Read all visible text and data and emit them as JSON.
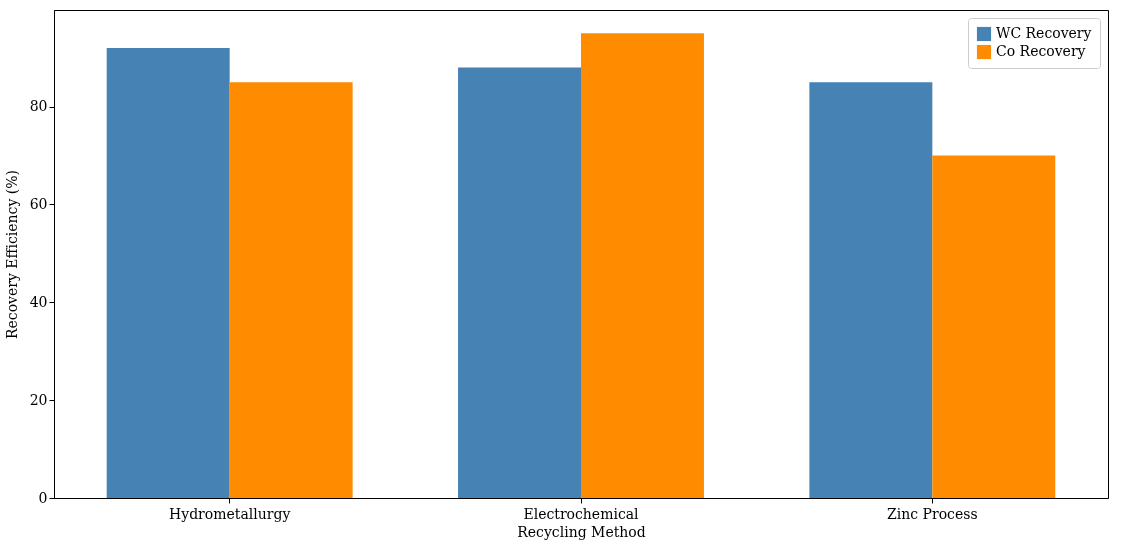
{
  "chart_data": {
    "type": "bar",
    "xlabel": "Recycling Method",
    "ylabel": "Recovery Efficiency (%)",
    "categories": [
      "Hydrometallurgy",
      "Electrochemical",
      "Zinc Process"
    ],
    "series": [
      {
        "name": "WC Recovery",
        "color": "#4682b4",
        "values": [
          92,
          88,
          85
        ]
      },
      {
        "name": "Co Recovery",
        "color": "#ff8c00",
        "values": [
          85,
          95,
          70
        ]
      }
    ],
    "ylim": [
      0,
      99.75
    ],
    "yticks": [
      0,
      20,
      40,
      60,
      80
    ],
    "legend": "top right",
    "grid": false
  }
}
